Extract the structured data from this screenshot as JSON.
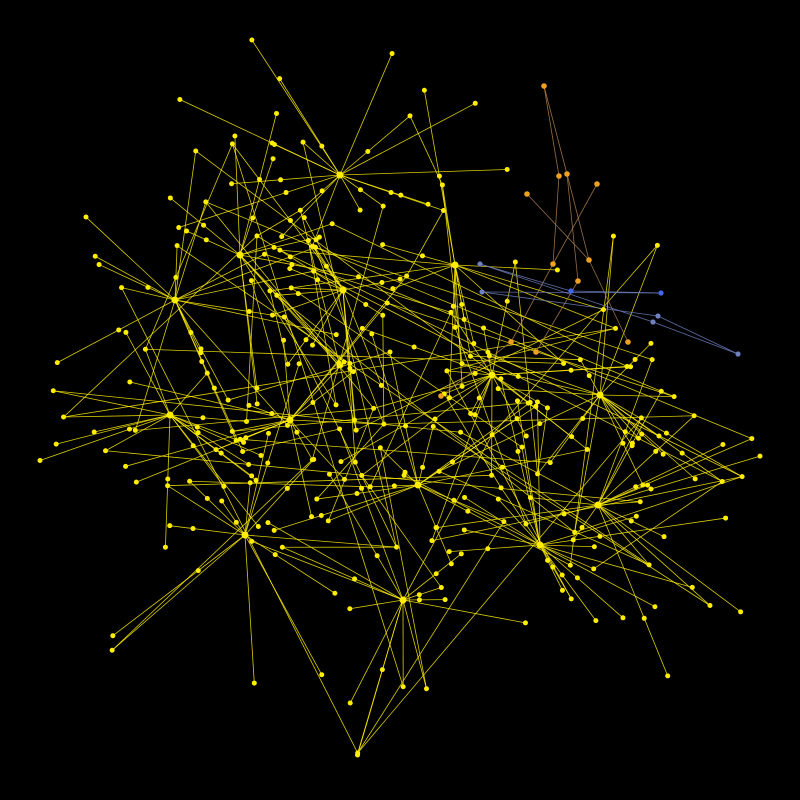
{
  "graph": {
    "type": "node-link network",
    "background_color": "#000000",
    "colors": {
      "primary_nodes": "#ffee00",
      "primary_edges": "#ffee00",
      "orange_cluster": "#f0a020",
      "orange_muted": "#b08050",
      "blue_cluster": "#4466ee",
      "blue_muted": "#7080c0"
    },
    "hubs": [
      {
        "id": "hub-1"
      },
      {
        "id": "hub-2"
      },
      {
        "id": "hub-3"
      },
      {
        "id": "hub-4"
      },
      {
        "id": "hub-5"
      },
      {
        "id": "hub-6"
      },
      {
        "id": "hub-7"
      },
      {
        "id": "hub-8"
      },
      {
        "id": "hub-9"
      },
      {
        "id": "hub-10"
      },
      {
        "id": "hub-11"
      },
      {
        "id": "hub-12"
      },
      {
        "id": "hub-13"
      },
      {
        "id": "hub-14"
      }
    ],
    "clusters": [
      {
        "name": "yellow-main",
        "color": "primary_nodes"
      },
      {
        "name": "orange",
        "color": "orange_cluster"
      },
      {
        "name": "blue",
        "color": "blue_cluster"
      }
    ]
  }
}
